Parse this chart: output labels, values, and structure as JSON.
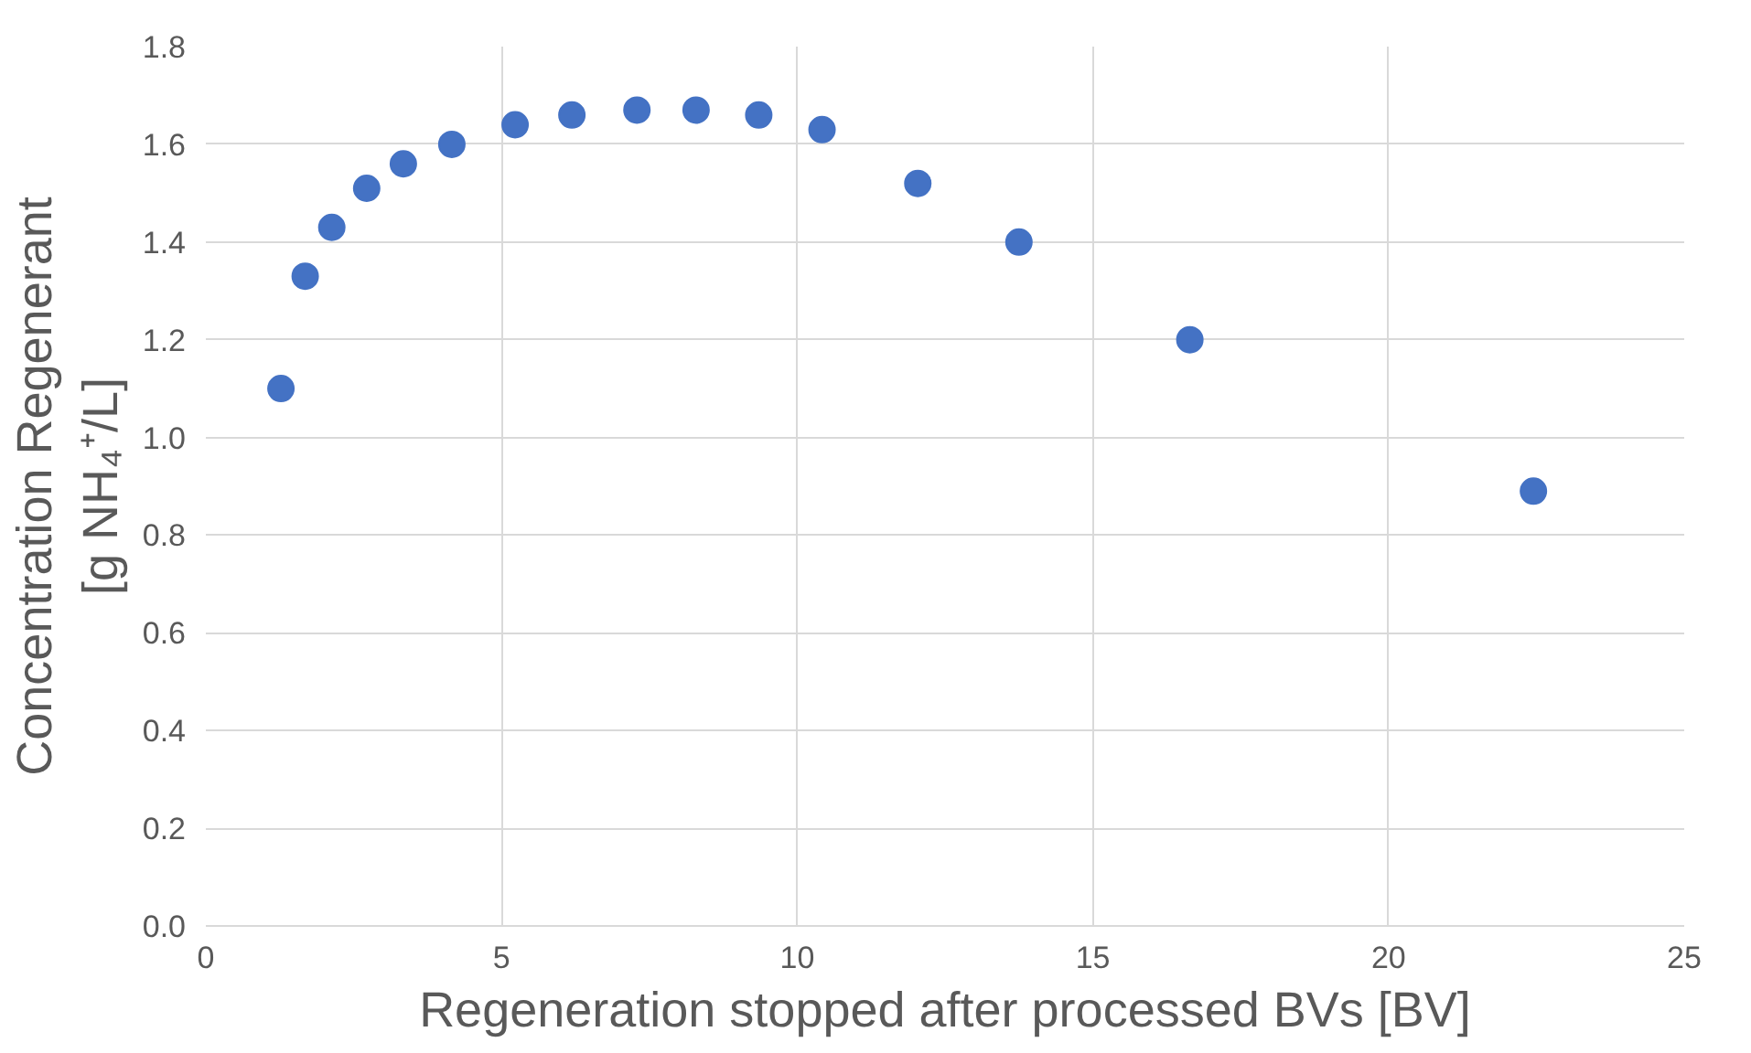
{
  "chart_data": {
    "type": "scatter",
    "xlabel": "Regeneration stopped after processed BVs [BV]",
    "ylabel": "Concentration Regenerant\n[g NH₄⁺/L]",
    "x": [
      1.27,
      1.68,
      2.13,
      2.72,
      3.34,
      4.16,
      5.23,
      6.19,
      7.29,
      8.29,
      9.35,
      10.42,
      12.04,
      13.75,
      16.64,
      22.45
    ],
    "series": [
      {
        "color": "#4472c4",
        "values": [
          1.1,
          1.33,
          1.43,
          1.51,
          1.56,
          1.6,
          1.64,
          1.66,
          1.67,
          1.67,
          1.66,
          1.63,
          1.52,
          1.4,
          1.2,
          0.89
        ]
      }
    ],
    "xlim": [
      0,
      25
    ],
    "xticks": [
      0,
      5,
      10,
      15,
      20,
      25
    ],
    "ylim": [
      0,
      1.8
    ],
    "yticks": [
      {
        "value": 0,
        "label": "0.0"
      },
      {
        "value": 0.2,
        "label": "0.2"
      },
      {
        "value": 0.4,
        "label": "0.4"
      },
      {
        "value": 0.6,
        "label": "0.6"
      },
      {
        "value": 0.8,
        "label": "0.8"
      },
      {
        "value": 1.0,
        "label": "1.0"
      },
      {
        "value": 1.2,
        "label": "1.2"
      },
      {
        "value": 1.4,
        "label": "1.4"
      },
      {
        "value": 1.6,
        "label": "1.6"
      },
      {
        "value": 1.8,
        "label": "1.8"
      }
    ],
    "grid": true,
    "marker": "circle"
  }
}
